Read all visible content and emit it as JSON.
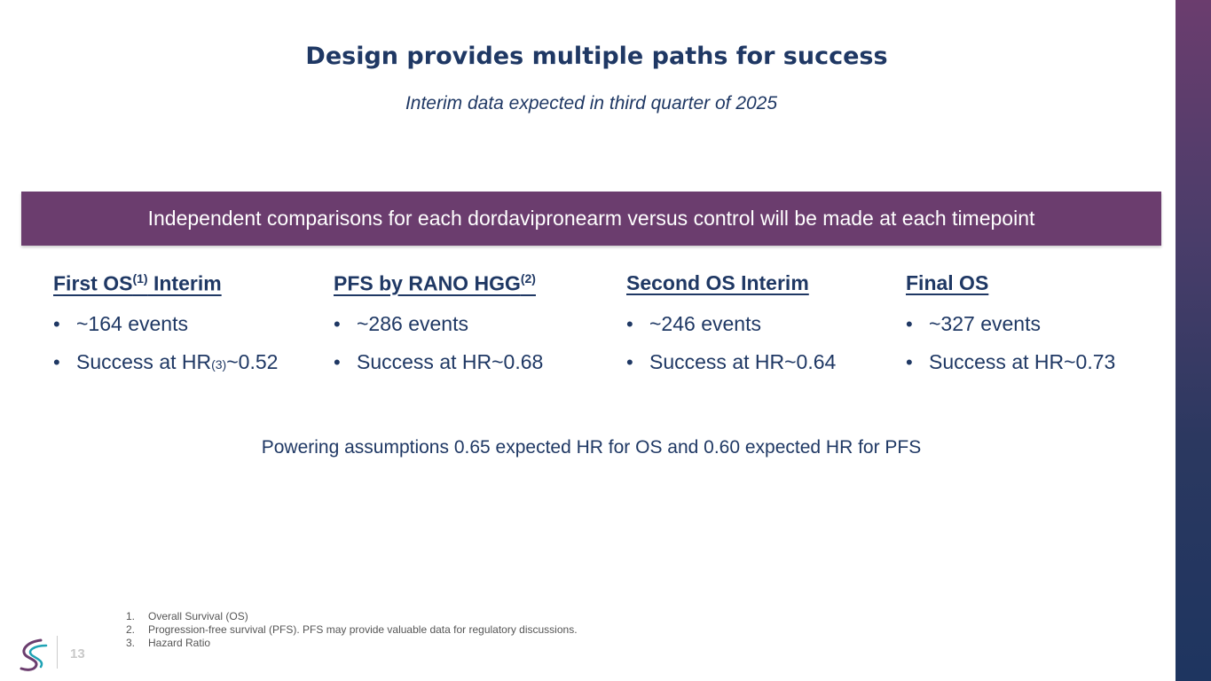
{
  "slide": {
    "title": "Design provides multiple paths for success",
    "subtitle": "Interim data expected in third quarter of 2025",
    "banner": "Independent comparisons for each dordavipronearm versus control will be made at each timepoint",
    "columns": [
      {
        "heading_pre": "First OS",
        "heading_sup": "(1)",
        "heading_post": " Interim",
        "bullet1": "~164 events",
        "bullet2_pre": "Success at HR",
        "bullet2_sup": "(3)",
        "bullet2_post": "~0.52"
      },
      {
        "heading_pre": "PFS by RANO HGG",
        "heading_sup": "(2)",
        "heading_post": "",
        "bullet1": "~286 events",
        "bullet2_pre": "Success at HR~0.68",
        "bullet2_sup": "",
        "bullet2_post": ""
      },
      {
        "heading_pre": "Second OS Interim",
        "heading_sup": "",
        "heading_post": "",
        "bullet1": "~246 events",
        "bullet2_pre": "Success at HR~0.64",
        "bullet2_sup": "",
        "bullet2_post": ""
      },
      {
        "heading_pre": "Final OS",
        "heading_sup": "",
        "heading_post": "",
        "bullet1": "~327 events",
        "bullet2_pre": "Success at HR~0.73",
        "bullet2_sup": "",
        "bullet2_post": ""
      }
    ],
    "bullet_symbol": "•",
    "powering": "Powering assumptions 0.65 expected HR for OS and 0.60 expected HR for PFS",
    "footnotes": [
      {
        "num": "1.",
        "text": "Overall Survival (OS)"
      },
      {
        "num": "2.",
        "text": "Progression-free survival (PFS).  PFS may provide valuable data for regulatory discussions."
      },
      {
        "num": "3.",
        "text": "Hazard Ratio"
      }
    ],
    "page_number": "13"
  },
  "colors": {
    "navy": "#1f3864",
    "purple": "#6b3d6e",
    "logo_teal": "#1fa3b5",
    "logo_purple": "#6b3d6e"
  }
}
